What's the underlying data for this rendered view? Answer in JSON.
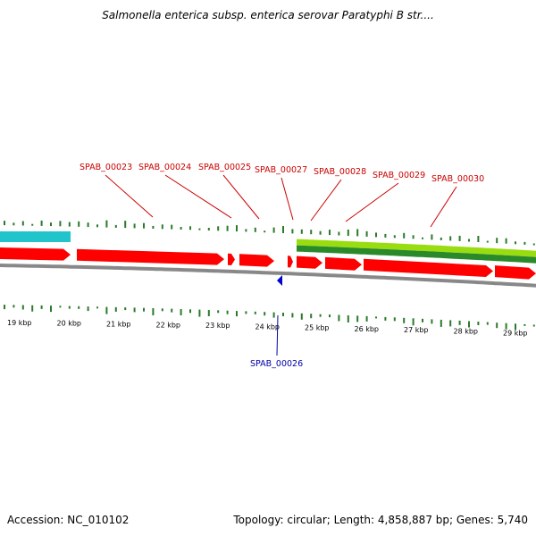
{
  "title": "Salmonella enterica subsp. enterica serovar Paratyphi B str....",
  "footer": {
    "accession": "Accession: NC_010102",
    "summary": "Topology: circular; Length: 4,858,887 bp; Genes: 5,740"
  },
  "colors": {
    "forward_gene": "#ff0000",
    "reverse_gene": "#0000cc",
    "gc_skew_tick": "#2a7a2a",
    "cyan_feature": "#22c4cc",
    "green_band_light": "#99dd11",
    "green_band_dark": "#2a8a2a",
    "backbone": "#888888",
    "forward_label": "#cc0000",
    "reverse_label": "#0000aa"
  },
  "gene_labels": [
    {
      "id": "g23",
      "text": "SPAB_00023",
      "strand": "forward"
    },
    {
      "id": "g24",
      "text": "SPAB_00024",
      "strand": "forward"
    },
    {
      "id": "g25",
      "text": "SPAB_00025",
      "strand": "forward"
    },
    {
      "id": "g27",
      "text": "SPAB_00027",
      "strand": "forward"
    },
    {
      "id": "g28",
      "text": "SPAB_00028",
      "strand": "forward"
    },
    {
      "id": "g29",
      "text": "SPAB_00029",
      "strand": "forward"
    },
    {
      "id": "g30",
      "text": "SPAB_00030",
      "strand": "forward"
    },
    {
      "id": "g26",
      "text": "SPAB_00026",
      "strand": "reverse"
    }
  ],
  "scale_labels": [
    "19 kbp",
    "20 kbp",
    "21 kbp",
    "22 kbp",
    "23 kbp",
    "24 kbp",
    "25 kbp",
    "26 kbp",
    "27 kbp",
    "28 kbp",
    "29 kbp"
  ]
}
